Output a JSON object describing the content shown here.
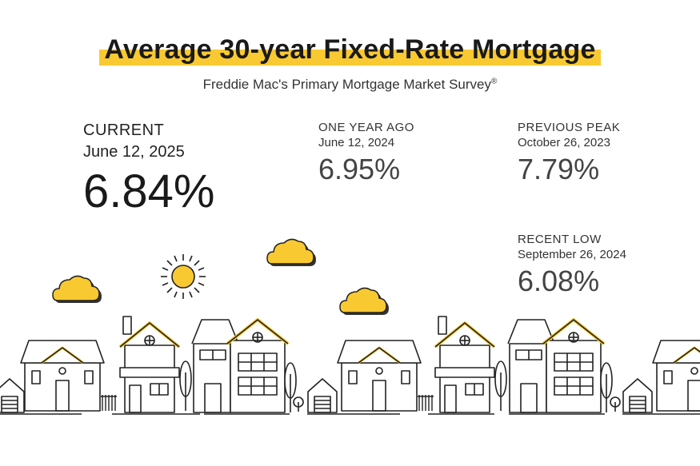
{
  "title": "Average 30-year Fixed-Rate Mortgage",
  "subtitle": "Freddie Mac's Primary Mortgage Market Survey",
  "subtitle_mark": "®",
  "colors": {
    "accent": "#F9C932",
    "ink": "#222222"
  },
  "stats": {
    "current": {
      "label": "CURRENT",
      "date": "June 12, 2025",
      "value": "6.84%"
    },
    "one_year_ago": {
      "label": "ONE YEAR AGO",
      "date": "June 12, 2024",
      "value": "6.95%"
    },
    "previous_peak": {
      "label": "PREVIOUS PEAK",
      "date": "October 26, 2023",
      "value": "7.79%"
    },
    "recent_low": {
      "label": "RECENT LOW",
      "date": "September 26, 2024",
      "value": "6.08%"
    }
  },
  "illustration": {
    "icons": [
      "sun-icon",
      "cloud-icon",
      "house-icon",
      "tree-icon",
      "garage-icon"
    ]
  }
}
